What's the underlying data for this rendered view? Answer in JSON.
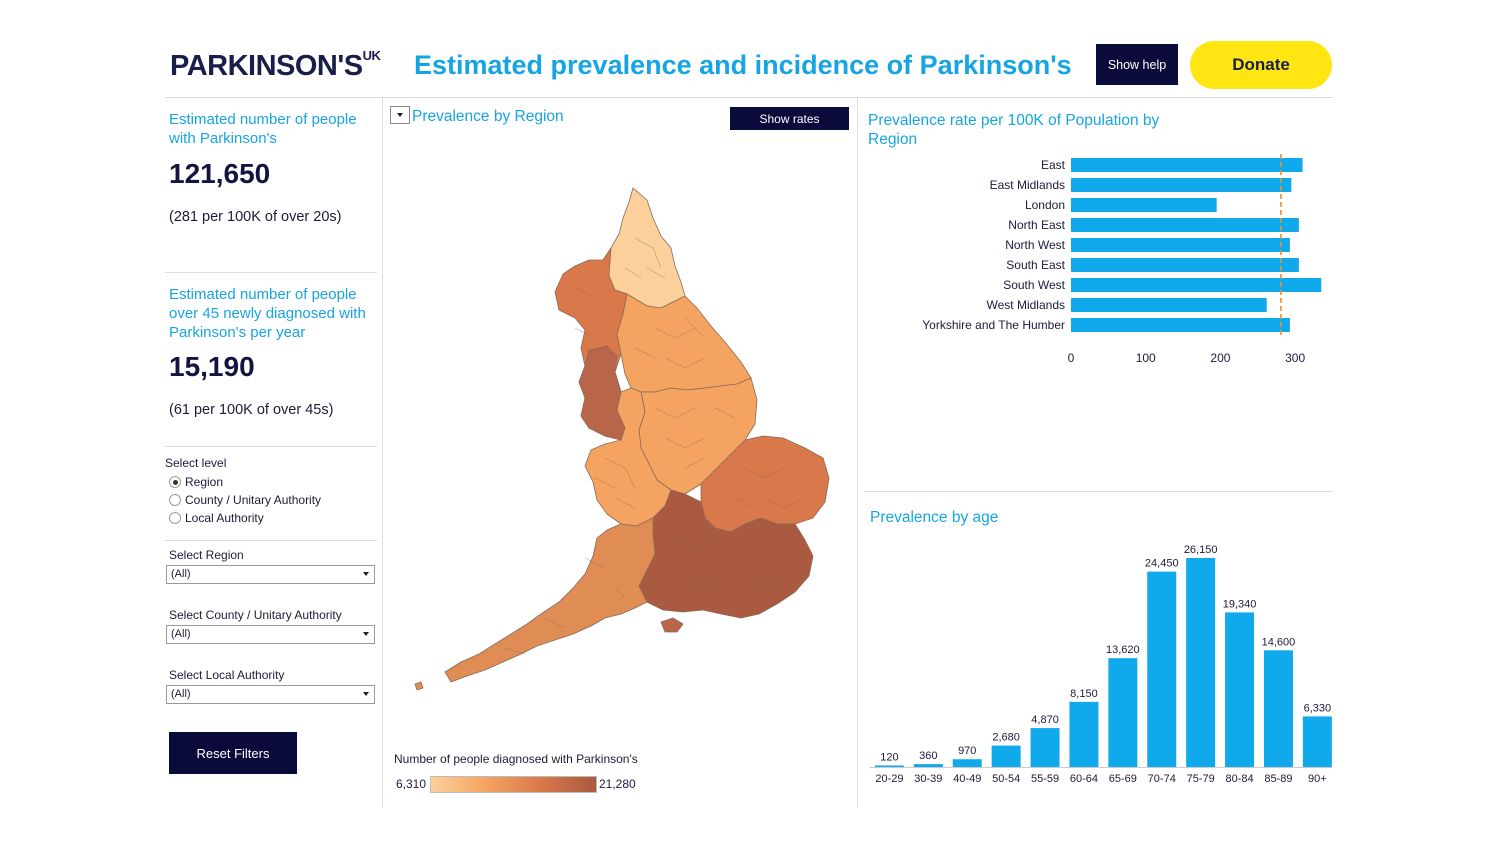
{
  "header": {
    "logo_text": "PARKINSON'S",
    "logo_sup": "UK",
    "title": "Estimated prevalence and incidence of Parkinson's",
    "help_label": "Show help",
    "donate_label": "Donate"
  },
  "kpis": {
    "prevalence_label": "Estimated number of people with Parkinson's",
    "prevalence_value": "121,650",
    "prevalence_sub": "(281 per 100K of over 20s)",
    "incidence_label": "Estimated number of people over 45 newly diagnosed with Parkinson's per year",
    "incidence_value": "15,190",
    "incidence_sub": "(61 per 100K of over 45s)"
  },
  "filters": {
    "level_label": "Select level",
    "level_options": [
      "Region",
      "County / Unitary Authority",
      "Local Authority"
    ],
    "level_selected": "Region",
    "region_label": "Select Region",
    "region_value": "(All)",
    "county_label": "Select County / Unitary Authority",
    "county_value": "(All)",
    "la_label": "Select Local Authority",
    "la_value": "(All)",
    "reset_label": "Reset Filters"
  },
  "map": {
    "title": "Prevalence by Region",
    "rates_label": "Show rates",
    "legend_title": "Number of people diagnosed with Parkinson's",
    "legend_min": "6,310",
    "legend_max": "21,280",
    "colors": {
      "low": "#fbd09a",
      "mid": "#f4a460",
      "high": "#d9784a",
      "max": "#a95a40"
    }
  },
  "chart_data": [
    {
      "type": "bar",
      "orientation": "horizontal",
      "title": "Prevalence rate per 100K of Population by Region",
      "categories": [
        "East",
        "East Midlands",
        "London",
        "North East",
        "North West",
        "South East",
        "South West",
        "West Midlands",
        "Yorkshire and The Humber"
      ],
      "values": [
        310,
        295,
        195,
        305,
        293,
        305,
        335,
        262,
        293
      ],
      "reference_line": 281,
      "reference_color": "#e8912d",
      "xticks": [
        "0",
        "100",
        "200",
        "300"
      ],
      "xlim": [
        0,
        340
      ],
      "bar_color": "#10aaec"
    },
    {
      "type": "bar",
      "orientation": "vertical",
      "title": "Prevalence by age",
      "categories": [
        "20-29",
        "30-39",
        "40-49",
        "50-54",
        "55-59",
        "60-64",
        "65-69",
        "70-74",
        "75-79",
        "80-84",
        "85-89",
        "90+"
      ],
      "values": [
        120,
        360,
        970,
        2680,
        4870,
        8150,
        13620,
        24450,
        26150,
        19340,
        14600,
        6330
      ],
      "value_labels": [
        "120",
        "360",
        "970",
        "2,680",
        "4,870",
        "8,150",
        "13,620",
        "24,450",
        "26,150",
        "19,340",
        "14,600",
        "6,330"
      ],
      "ylim": [
        0,
        26150
      ],
      "bar_color": "#10aaec"
    }
  ]
}
